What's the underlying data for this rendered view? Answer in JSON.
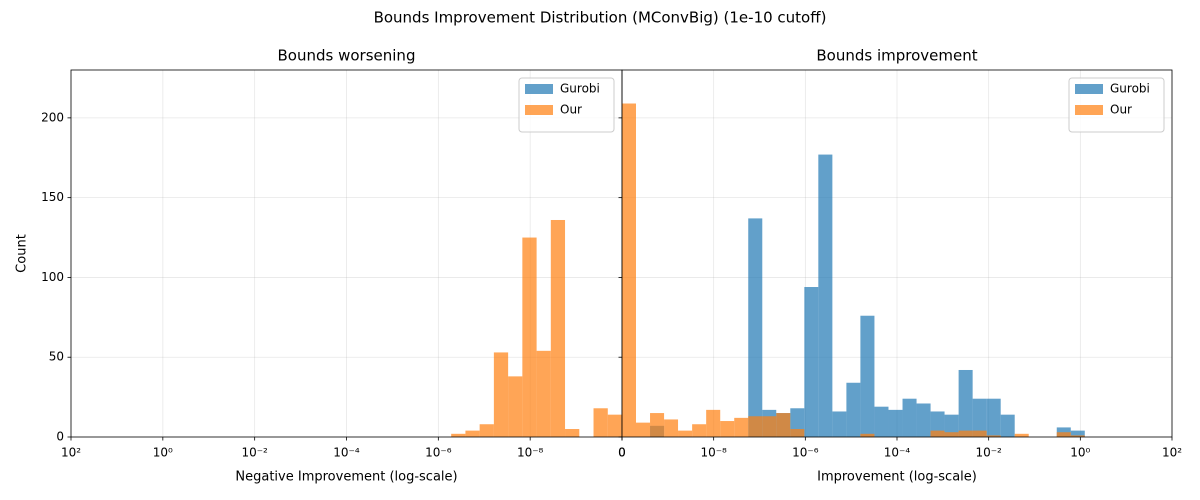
{
  "title": "Bounds Improvement Distribution (MConvBig) (1e-10 cutoff)",
  "chart_data": [
    {
      "type": "histogram",
      "title": "Bounds worsening",
      "xlabel": "Negative Improvement (log-scale)",
      "ylabel": "Count",
      "xscale": "log",
      "grid": true,
      "legend": "upper right",
      "xlim": [
        100,
        1e-10
      ],
      "ylim": [
        0,
        230
      ],
      "xticks": [
        {
          "value": 100,
          "label": "10²"
        },
        {
          "value": 1,
          "label": "10⁰"
        },
        {
          "value": 0.01,
          "label": "10⁻²"
        },
        {
          "value": 0.0001,
          "label": "10⁻⁴"
        },
        {
          "value": 1e-06,
          "label": "10⁻⁶"
        },
        {
          "value": 1e-08,
          "label": "10⁻⁸"
        },
        {
          "value": 1e-10,
          "label": "0"
        }
      ],
      "yticks": [
        0,
        50,
        100,
        150,
        200
      ],
      "ytick_labels": true,
      "bins": [
        1e-10,
        2.04e-10,
        4.17e-10,
        8.51e-10,
        1.74e-09,
        3.55e-09,
        7.24e-09,
        1.48e-08,
        3.02e-08,
        6.17e-08,
        1.26e-07,
        2.57e-07,
        5.25e-07
      ],
      "series": [
        {
          "name": "Gurobi",
          "color": "#1f77b4",
          "values": [
            0,
            0,
            0,
            0,
            0,
            0,
            0,
            0,
            0,
            0,
            0,
            0
          ]
        },
        {
          "name": "Our",
          "color": "#ff7f0e",
          "values": [
            14,
            18,
            0,
            5,
            136,
            54,
            125,
            38,
            53,
            8,
            4,
            2
          ]
        }
      ]
    },
    {
      "type": "histogram",
      "title": "Bounds improvement",
      "xlabel": "Improvement (log-scale)",
      "xscale": "log",
      "grid": true,
      "legend": "upper right",
      "xlim": [
        1e-10,
        100
      ],
      "ylim": [
        0,
        230
      ],
      "xticks": [
        {
          "value": 1e-10,
          "label": "0"
        },
        {
          "value": 1e-08,
          "label": "10⁻⁸"
        },
        {
          "value": 1e-06,
          "label": "10⁻⁶"
        },
        {
          "value": 0.0001,
          "label": "10⁻⁴"
        },
        {
          "value": 0.01,
          "label": "10⁻²"
        },
        {
          "value": 1,
          "label": "10⁰"
        },
        {
          "value": 100,
          "label": "10²"
        }
      ],
      "yticks": [
        0,
        50,
        100,
        150,
        200
      ],
      "ytick_labels": false,
      "bins": [
        1e-10,
        2.02e-10,
        4.09e-10,
        8.28e-10,
        1.67e-09,
        3.39e-09,
        6.86e-09,
        1.39e-08,
        2.81e-08,
        5.68e-08,
        1.15e-07,
        2.32e-07,
        4.7e-07,
        9.51e-07,
        1.92e-06,
        3.89e-06,
        7.87e-06,
        1.59e-05,
        3.22e-05,
        6.52e-05,
        0.000132,
        0.000267,
        0.00054,
        0.00109,
        0.00221,
        0.00447,
        0.00904,
        0.0183,
        0.037,
        0.0748,
        0.151,
        0.306,
        0.619,
        1.25
      ],
      "series": [
        {
          "name": "Gurobi",
          "color": "#1f77b4",
          "values": [
            0,
            0,
            7,
            0,
            0,
            0,
            0,
            0,
            0,
            137,
            17,
            15,
            18,
            94,
            177,
            16,
            34,
            76,
            19,
            17,
            24,
            21,
            16,
            14,
            42,
            24,
            24,
            14,
            0,
            0,
            0,
            6,
            4
          ]
        },
        {
          "name": "Our",
          "color": "#ff7f0e",
          "values": [
            209,
            9,
            15,
            11,
            4,
            8,
            17,
            10,
            12,
            13,
            13,
            15,
            5,
            0,
            0,
            0,
            0,
            2,
            0,
            0,
            0,
            0,
            4,
            3,
            4,
            4,
            1,
            0,
            2,
            0,
            0,
            3,
            1
          ]
        }
      ]
    }
  ]
}
